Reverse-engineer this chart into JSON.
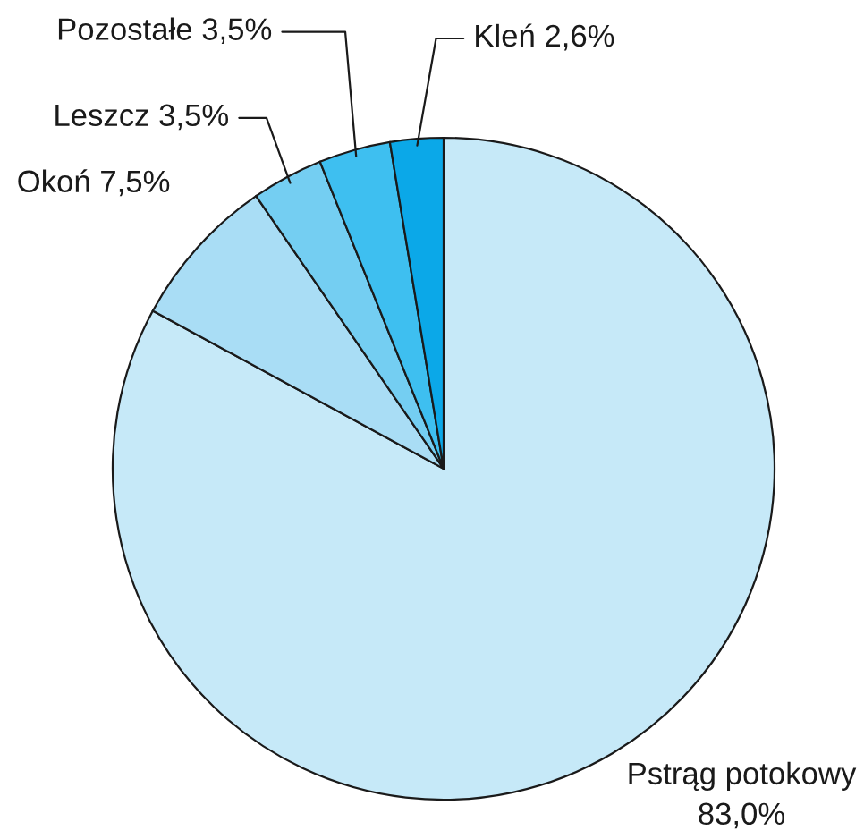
{
  "chart_data": {
    "type": "pie",
    "categories": [
      "Pstrąg potokowy",
      "Okoń",
      "Leszcz",
      "Pozostałe",
      "Kleń"
    ],
    "values": [
      83.0,
      7.5,
      3.5,
      3.5,
      2.6
    ],
    "value_labels": [
      "83,0%",
      "7,5%",
      "3,5%",
      "3,5%",
      "2,6%"
    ],
    "colors": [
      "#c6e9f8",
      "#a9ddf5",
      "#74cef2",
      "#3ebff0",
      "#0ba8e8"
    ],
    "legend": false
  }
}
